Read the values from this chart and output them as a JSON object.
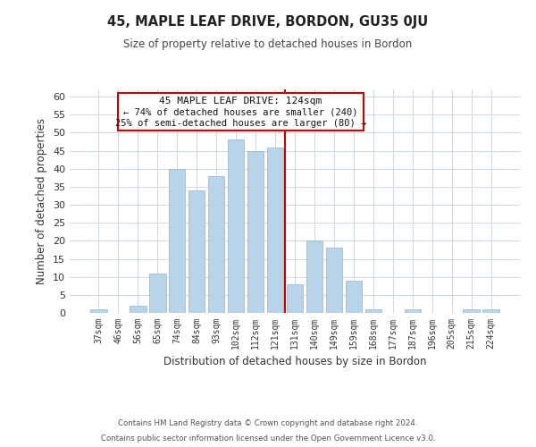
{
  "title": "45, MAPLE LEAF DRIVE, BORDON, GU35 0JU",
  "subtitle": "Size of property relative to detached houses in Bordon",
  "xlabel": "Distribution of detached houses by size in Bordon",
  "ylabel": "Number of detached properties",
  "bar_labels": [
    "37sqm",
    "46sqm",
    "56sqm",
    "65sqm",
    "74sqm",
    "84sqm",
    "93sqm",
    "102sqm",
    "112sqm",
    "121sqm",
    "131sqm",
    "140sqm",
    "149sqm",
    "159sqm",
    "168sqm",
    "177sqm",
    "187sqm",
    "196sqm",
    "205sqm",
    "215sqm",
    "224sqm"
  ],
  "bar_values": [
    1,
    0,
    2,
    11,
    40,
    34,
    38,
    48,
    45,
    46,
    8,
    20,
    18,
    9,
    1,
    0,
    1,
    0,
    0,
    1,
    1
  ],
  "bar_color": "#b8d4e8",
  "bar_edgecolor": "#9bbdd4",
  "vline_x": 9.5,
  "vline_color": "#cc0000",
  "ylim": [
    0,
    62
  ],
  "yticks": [
    0,
    5,
    10,
    15,
    20,
    25,
    30,
    35,
    40,
    45,
    50,
    55,
    60
  ],
  "annotation_title": "45 MAPLE LEAF DRIVE: 124sqm",
  "annotation_line1": "← 74% of detached houses are smaller (240)",
  "annotation_line2": "25% of semi-detached houses are larger (80) →",
  "footer_line1": "Contains HM Land Registry data © Crown copyright and database right 2024.",
  "footer_line2": "Contains public sector information licensed under the Open Government Licence v3.0.",
  "background_color": "#ffffff",
  "grid_color": "#d0d8e0"
}
